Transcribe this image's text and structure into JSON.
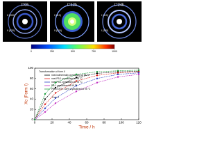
{
  "images": [
    {
      "label": "t=0h",
      "annotations": [
        "II (200)",
        "II (220)"
      ]
    },
    {
      "label": "t=12h",
      "annotations": [
        "I (110)",
        "II (200)"
      ]
    },
    {
      "label": "t=24h",
      "annotations": [
        "I (110)",
        "I (300)"
      ]
    }
  ],
  "colorbar": {
    "lim": [
      0,
      1000
    ],
    "ticks": [
      0,
      250,
      500,
      750,
      1000
    ]
  },
  "chart_data": {
    "type": "line",
    "xlabel": "Time / h",
    "ylabel": "Xc (Form I)",
    "xlim": [
      0,
      120
    ],
    "xticks": [
      0,
      20,
      40,
      60,
      80,
      100,
      120
    ],
    "ylim": [
      0,
      100
    ],
    "yticks": [
      0,
      20,
      40,
      60,
      80,
      100
    ],
    "annotations": [
      "Transformation of form II",
      "Form I"
    ],
    "series": [
      {
        "name": "neat isothermally crystallized at 95 °C",
        "color": "#000000",
        "x": [
          0,
          12,
          24,
          48,
          72,
          96,
          120
        ],
        "values": [
          0,
          40,
          62,
          82,
          90,
          93,
          94
        ]
      },
      {
        "name": "neat PB-1 crystallized at 95 °C",
        "color": "#e0201b",
        "x": [
          0,
          12,
          24,
          48,
          72,
          96,
          120
        ],
        "values": [
          0,
          30,
          52,
          75,
          86,
          91,
          93
        ]
      },
      {
        "name": "neat PB-1 crystallized at 75 °C",
        "color": "#2b3fc4",
        "x": [
          0,
          12,
          24,
          48,
          72,
          96,
          120
        ],
        "values": [
          0,
          22,
          42,
          66,
          80,
          88,
          91
        ]
      },
      {
        "name": "PB-1 crystallized at 55 °C",
        "color": "#c02ac0",
        "x": [
          0,
          12,
          24,
          48,
          72,
          96,
          120
        ],
        "values": [
          0,
          15,
          32,
          55,
          72,
          83,
          88
        ]
      },
      {
        "name": "PB-1/CNTs 1 wt% crystallized at 95 °C",
        "color": "#20a040",
        "x": [
          0,
          12,
          24,
          48,
          72,
          96,
          120
        ],
        "values": [
          0,
          50,
          72,
          88,
          93,
          95,
          96
        ]
      }
    ]
  }
}
